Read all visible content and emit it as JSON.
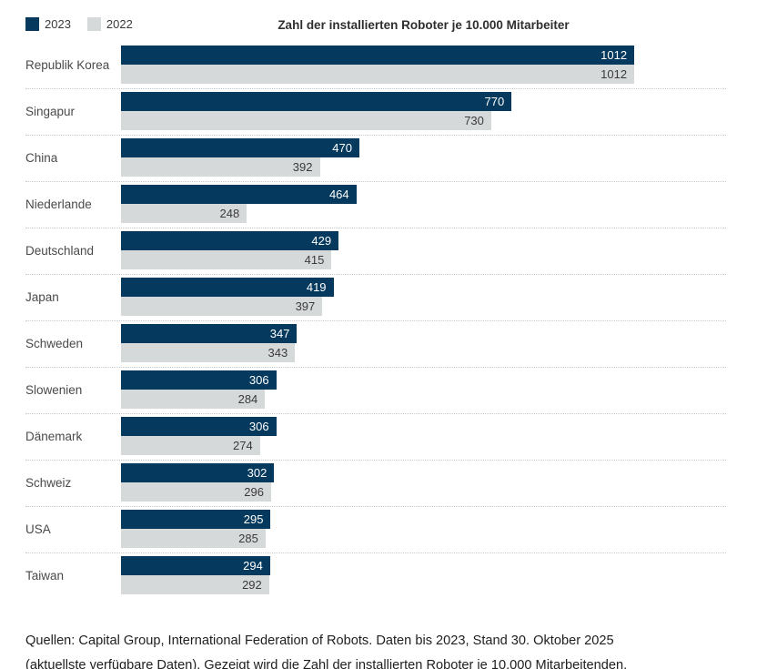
{
  "colors": {
    "series_2023": "#053a5e",
    "series_2022": "#d6d9da",
    "separator": "#c8c8c8"
  },
  "legend": {
    "items": [
      {
        "label": "2023",
        "color": "#053a5e"
      },
      {
        "label": "2022",
        "color": "#d6d9da"
      }
    ]
  },
  "chart_data": {
    "type": "bar",
    "orientation": "horizontal",
    "title": "Zahl der installierten Roboter je 10.000 Mitarbeiter",
    "categories": [
      "Republik Korea",
      "Singapur",
      "China",
      "Niederlande",
      "Deutschland",
      "Japan",
      "Schweden",
      "Slowenien",
      "Dänemark",
      "Schweiz",
      "USA",
      "Taiwan"
    ],
    "series": [
      {
        "name": "2023",
        "color": "#053a5e",
        "values": [
          1012,
          770,
          470,
          464,
          429,
          419,
          347,
          306,
          306,
          302,
          295,
          294
        ]
      },
      {
        "name": "2022",
        "color": "#d6d9da",
        "values": [
          1012,
          730,
          392,
          248,
          415,
          397,
          343,
          284,
          274,
          296,
          285,
          292
        ]
      }
    ],
    "xlim": [
      0,
      1193
    ],
    "value_labels": "inside-end",
    "legend_position": "top-left",
    "grid": false
  },
  "footer": {
    "line1": "Quellen: Capital Group, International Federation of Robots. Daten bis 2023, Stand 30. Oktober 2025",
    "line2": "(aktuellste verfügbare Daten). Gezeigt wird die Zahl der installierten Roboter je 10.000 Mitarbeitenden."
  }
}
